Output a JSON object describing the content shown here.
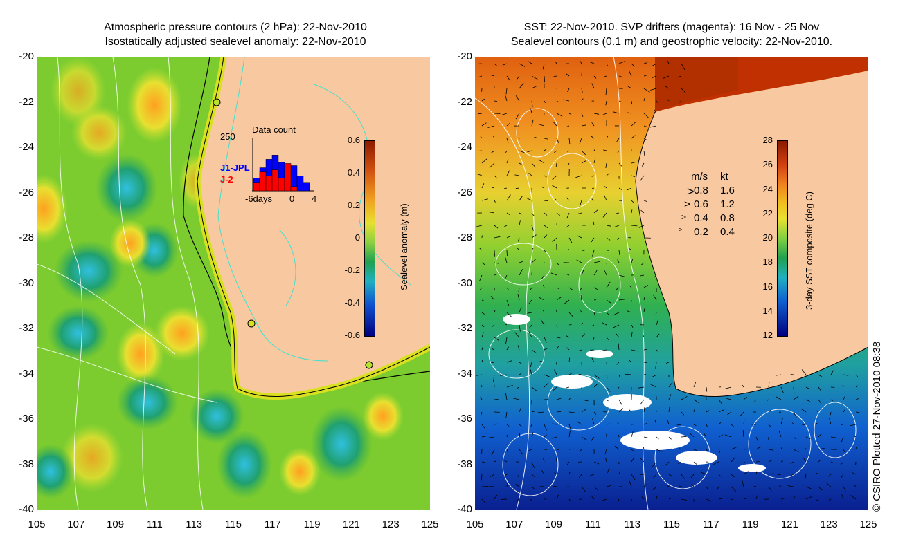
{
  "left_panel": {
    "title_line1": "Atmospheric pressure contours (2 hPa): 22-Nov-2010",
    "title_line2": "Isostatically adjusted sealevel anomaly: 22-Nov-2010",
    "y_ticks": [
      "-20",
      "-22",
      "-24",
      "-26",
      "-28",
      "-30",
      "-32",
      "-34",
      "-36",
      "-38",
      "-40"
    ],
    "x_ticks": [
      "105",
      "107",
      "109",
      "111",
      "113",
      "115",
      "117",
      "119",
      "121",
      "123",
      "125"
    ],
    "colorbar": {
      "title": "Sealevel anomaly (m)",
      "labels": [
        "0.6",
        "0.4",
        "0.2",
        "0",
        "-0.2",
        "-0.4",
        "-0.6"
      ]
    },
    "inset": {
      "title": "Data count",
      "ymax_label": "250",
      "series1_label": "J1-JPL",
      "series2_label": "J-2",
      "x_label_left": "-6days",
      "x_label_mid": "0",
      "x_label_right": "4",
      "series1_color": "#0000ff",
      "series2_color": "#ff0000",
      "chart_values_j1": [
        60,
        110,
        150,
        170,
        135,
        90,
        120,
        70,
        40
      ],
      "chart_values_j2": [
        40,
        90,
        70,
        100,
        60,
        130,
        20,
        0,
        0
      ]
    }
  },
  "right_panel": {
    "title_line1": "SST: 22-Nov-2010. SVP drifters (magenta): 16 Nov - 25 Nov",
    "title_line2": "Sealevel contours (0.1 m) and geostrophic velocity: 22-Nov-2010.",
    "y_ticks": [
      "-20",
      "-22",
      "-24",
      "-26",
      "-28",
      "-30",
      "-32",
      "-34",
      "-36",
      "-38",
      "-40"
    ],
    "x_ticks": [
      "105",
      "107",
      "109",
      "111",
      "113",
      "115",
      "117",
      "119",
      "121",
      "123",
      "125"
    ],
    "colorbar": {
      "title": "3-day SST composite (deg C)",
      "labels": [
        "28",
        "26",
        "24",
        "22",
        "20",
        "18",
        "16",
        "14",
        "12"
      ]
    },
    "velocity_legend": {
      "header_ms": "m/s",
      "header_kt": "kt",
      "rows": [
        {
          "ms": "0.8",
          "kt": "1.6"
        },
        {
          "ms": "0.6",
          "kt": "1.2"
        },
        {
          "ms": "0.4",
          "kt": "0.8"
        },
        {
          "ms": "0.2",
          "kt": "0.4"
        }
      ]
    }
  },
  "footer": {
    "copyright": "© CSIRO Plotted 27-Nov-2010 08:38"
  },
  "colors": {
    "land": "#f8c9a0",
    "coast_line": "#000000",
    "contour_cyan": "#40e0d0"
  }
}
